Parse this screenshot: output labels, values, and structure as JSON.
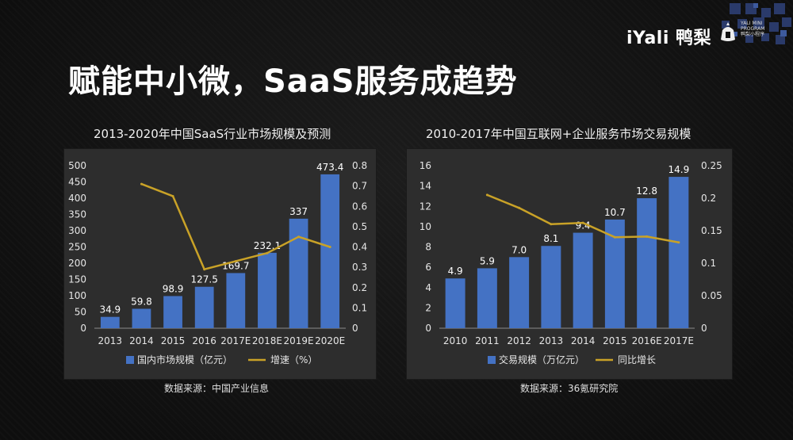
{
  "header": {
    "brand_name": "iYali 鸭梨",
    "mini_program_lines": [
      "YALI MINI",
      "PROGRAM",
      "鸭梨小程序"
    ]
  },
  "page_title": "赋能中小微，SaaS服务成趋势",
  "colors": {
    "bar": "#4472c4",
    "line": "#c9a227",
    "background": "#121212",
    "panel": "#2d2d2d"
  },
  "chart_data": [
    {
      "type": "bar",
      "title": "2013-2020年中国SaaS行业市场规模及预测",
      "categories": [
        "2013",
        "2014",
        "2015",
        "2016",
        "2017E",
        "2018E",
        "2019E",
        "2020E"
      ],
      "bar_series": {
        "name": "国内市场规模（亿元）",
        "values": [
          34.9,
          59.8,
          98.9,
          127.5,
          169.7,
          232.1,
          337,
          473.4
        ],
        "labels": [
          "34.9",
          "59.8",
          "98.9",
          "127.5",
          "169.7",
          "232.1",
          "337",
          "473.4"
        ]
      },
      "line_series": {
        "name": "增速（%）",
        "values": [
          0.71,
          0.65,
          0.29,
          0.33,
          0.37,
          0.45,
          0.4
        ],
        "start_index": 1
      },
      "y_left": {
        "min": 0,
        "max": 500,
        "ticks": [
          "0",
          "50",
          "100",
          "150",
          "200",
          "250",
          "300",
          "350",
          "400",
          "450",
          "500"
        ]
      },
      "y_right": {
        "min": 0,
        "max": 0.8,
        "ticks": [
          "0",
          "0.1",
          "0.2",
          "0.3",
          "0.4",
          "0.5",
          "0.6",
          "0.7",
          "0.8"
        ]
      },
      "legend": "bottom",
      "grid": false,
      "source": "数据来源：中国产业信息"
    },
    {
      "type": "bar",
      "title": "2010-2017年中国互联网+企业服务市场交易规模",
      "categories": [
        "2010",
        "2011",
        "2012",
        "2013",
        "2014",
        "2015",
        "2016E",
        "2017E"
      ],
      "bar_series": {
        "name": "交易规模（万亿元）",
        "values": [
          4.9,
          5.9,
          7.0,
          8.1,
          9.4,
          10.7,
          12.8,
          14.9
        ],
        "labels": [
          "4.9",
          "5.9",
          "7.0",
          "8.1",
          "9.4",
          "10.7",
          "12.8",
          "14.9"
        ]
      },
      "line_series": {
        "name": "同比增长",
        "values": [
          0.205,
          0.185,
          0.16,
          0.162,
          0.14,
          0.141,
          0.132
        ],
        "start_index": 1
      },
      "y_left": {
        "min": 0,
        "max": 16,
        "ticks": [
          "0",
          "2",
          "4",
          "6",
          "8",
          "10",
          "12",
          "14",
          "16"
        ]
      },
      "y_right": {
        "min": 0,
        "max": 0.25,
        "ticks": [
          "0",
          "0.05",
          "0.1",
          "0.15",
          "0.2",
          "0.25"
        ]
      },
      "legend": "bottom",
      "grid": false,
      "source": "数据来源：36氪研究院"
    }
  ]
}
